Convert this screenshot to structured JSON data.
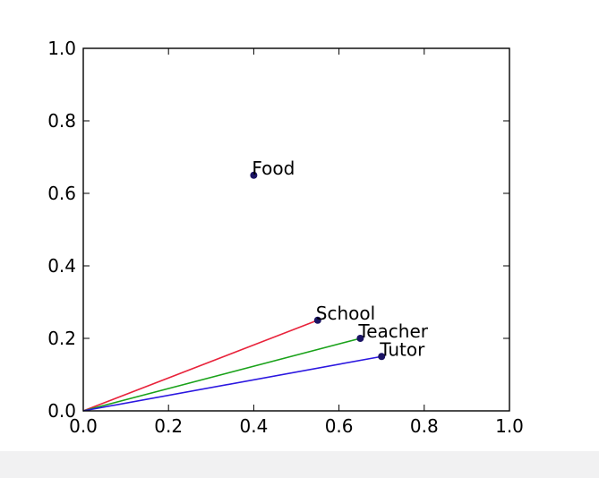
{
  "chart_data": {
    "type": "scatter",
    "xlim": [
      0.0,
      1.0
    ],
    "ylim": [
      0.0,
      1.0
    ],
    "xticks": [
      "0.0",
      "0.2",
      "0.4",
      "0.6",
      "0.8",
      "1.0"
    ],
    "yticks": [
      "0.0",
      "0.2",
      "0.4",
      "0.6",
      "0.8",
      "1.0"
    ],
    "grid": false,
    "points": [
      {
        "label": "Food",
        "x": 0.4,
        "y": 0.65,
        "vector": false
      },
      {
        "label": "School",
        "x": 0.55,
        "y": 0.25,
        "vector": true,
        "color": "#e8233b"
      },
      {
        "label": "Teacher",
        "x": 0.65,
        "y": 0.2,
        "vector": true,
        "color": "#1aa21a"
      },
      {
        "label": "Tutor",
        "x": 0.7,
        "y": 0.15,
        "vector": true,
        "color": "#2b17e0"
      }
    ],
    "marker_color": "#1b1464"
  }
}
